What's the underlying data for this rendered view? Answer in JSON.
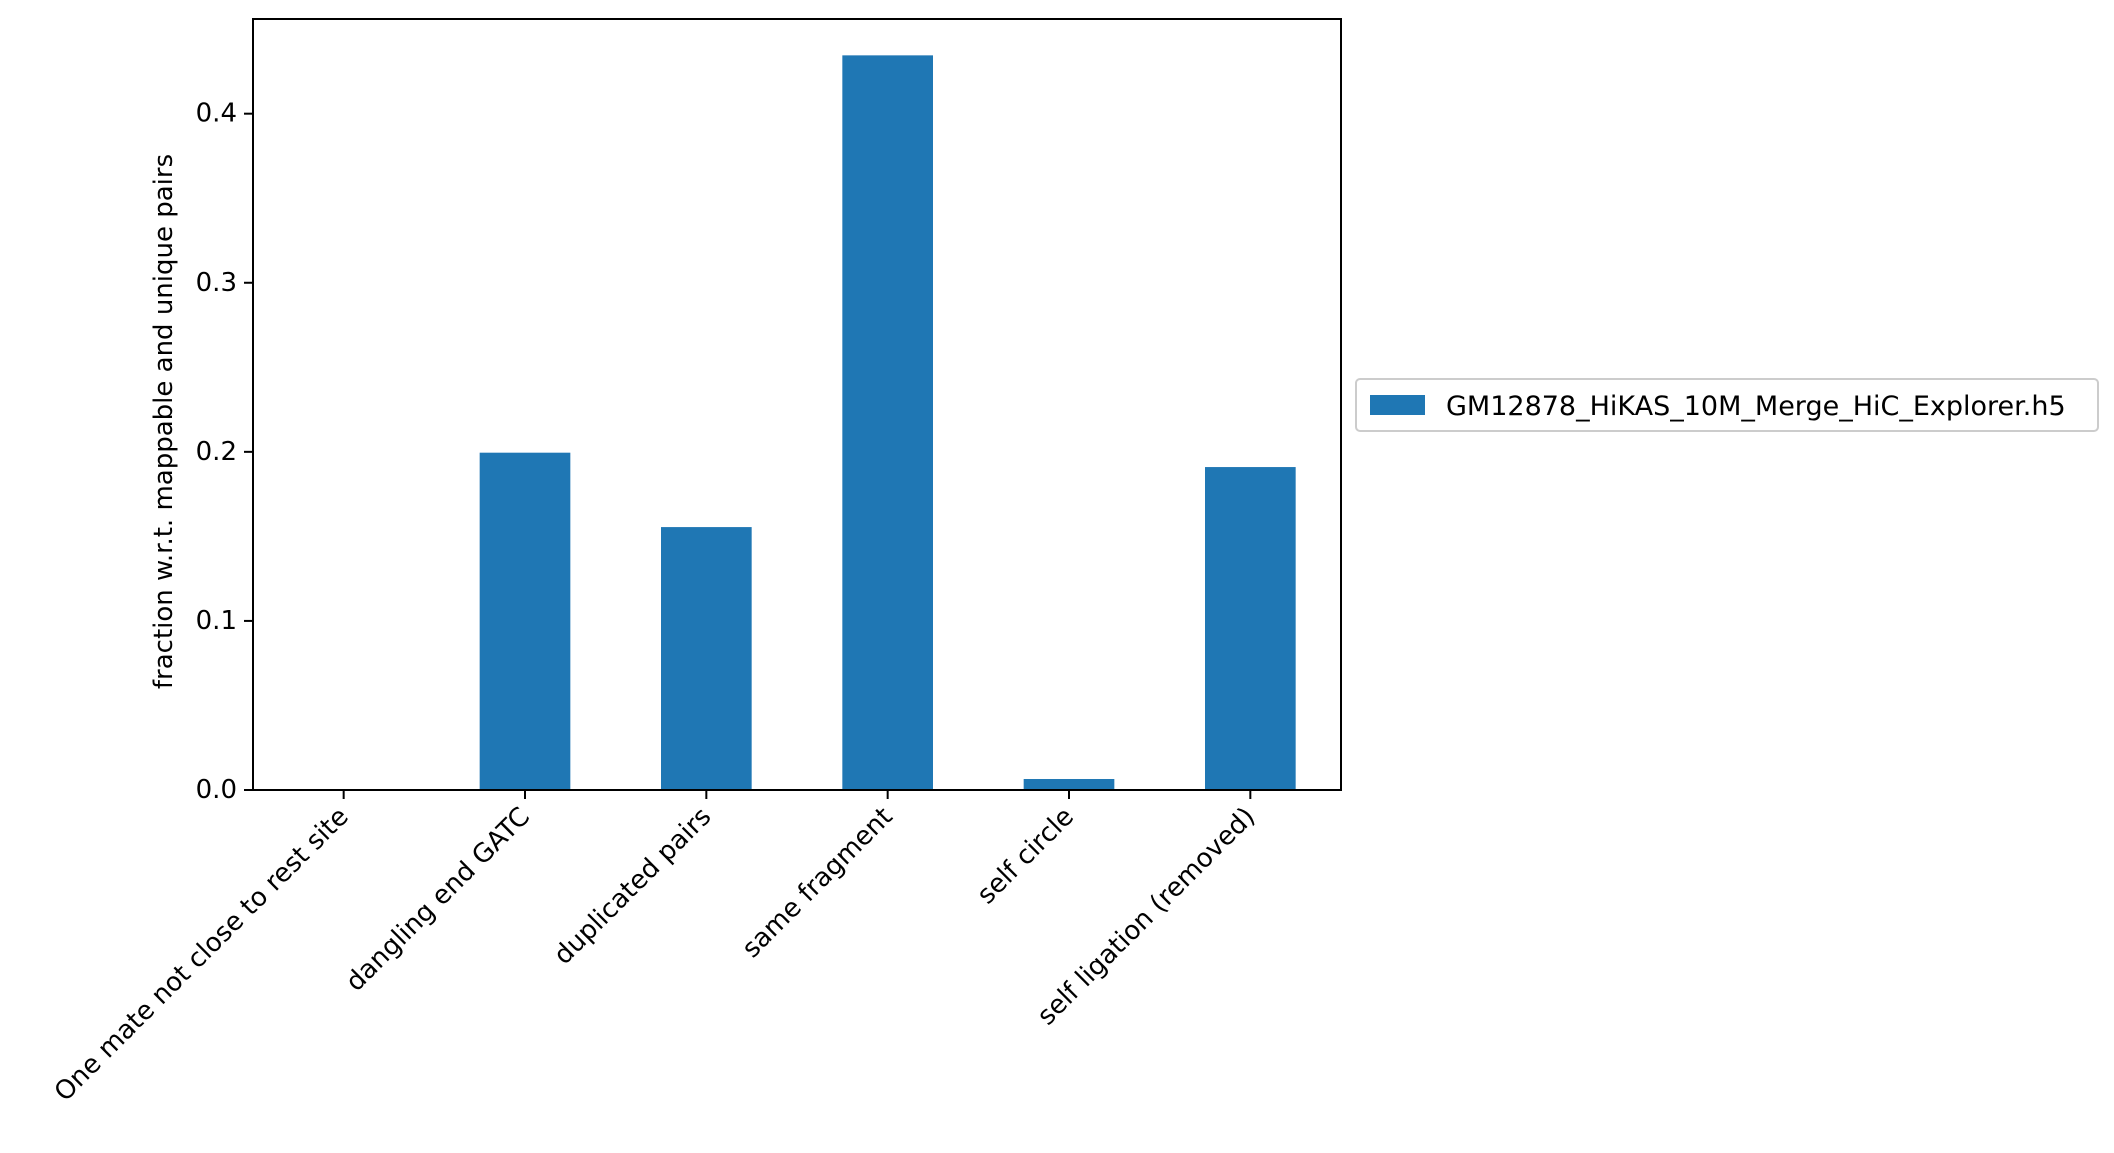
{
  "chart_data": {
    "type": "bar",
    "categories": [
      "One mate not close to rest site",
      "dangling end GATC",
      "duplicated pairs",
      "same fragment",
      "self circle",
      "self ligation (removed)"
    ],
    "series": [
      {
        "name": "GM12878_HiKAS_10M_Merge_HiC_Explorer.h5",
        "color": "#1f77b4",
        "values": [
          0.0,
          0.1995,
          0.1555,
          0.4345,
          0.0065,
          0.191
        ]
      }
    ],
    "title": "",
    "xlabel": "",
    "ylabel": "fraction w.r.t. mappable and unique pairs",
    "ylim": [
      0,
      0.456
    ],
    "yticks": [
      0.0,
      0.1,
      0.2,
      0.3,
      0.4
    ],
    "ytick_labels": [
      "0.0",
      "0.1",
      "0.2",
      "0.3",
      "0.4"
    ],
    "grid": false,
    "legend_position": "outside right"
  }
}
